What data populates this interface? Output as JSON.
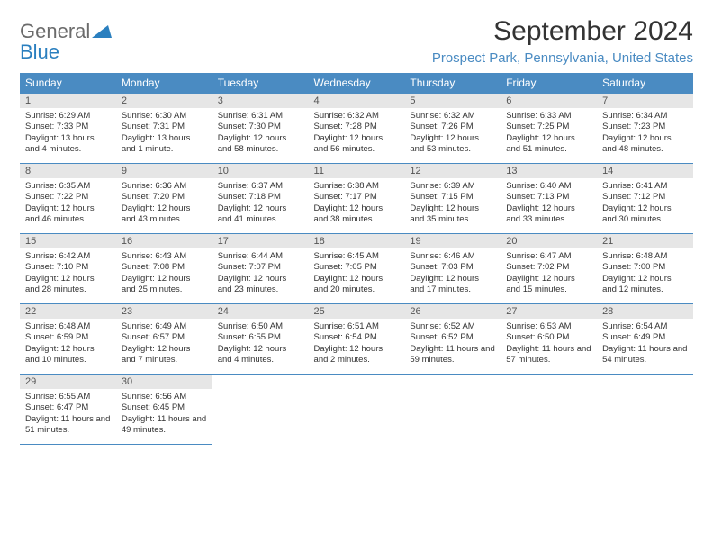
{
  "logo": {
    "word1": "General",
    "word2": "Blue"
  },
  "title": "September 2024",
  "location": "Prospect Park, Pennsylvania, United States",
  "colors": {
    "header_bg": "#4a8bc2",
    "header_text": "#ffffff",
    "daynum_bg": "#e6e6e6",
    "cell_border": "#4a8bc2",
    "logo_gray": "#6b6b6b",
    "logo_blue": "#2a7fbf"
  },
  "weekdays": [
    "Sunday",
    "Monday",
    "Tuesday",
    "Wednesday",
    "Thursday",
    "Friday",
    "Saturday"
  ],
  "weeks": [
    [
      {
        "n": "1",
        "sr": "Sunrise: 6:29 AM",
        "ss": "Sunset: 7:33 PM",
        "dl": "Daylight: 13 hours and 4 minutes."
      },
      {
        "n": "2",
        "sr": "Sunrise: 6:30 AM",
        "ss": "Sunset: 7:31 PM",
        "dl": "Daylight: 13 hours and 1 minute."
      },
      {
        "n": "3",
        "sr": "Sunrise: 6:31 AM",
        "ss": "Sunset: 7:30 PM",
        "dl": "Daylight: 12 hours and 58 minutes."
      },
      {
        "n": "4",
        "sr": "Sunrise: 6:32 AM",
        "ss": "Sunset: 7:28 PM",
        "dl": "Daylight: 12 hours and 56 minutes."
      },
      {
        "n": "5",
        "sr": "Sunrise: 6:32 AM",
        "ss": "Sunset: 7:26 PM",
        "dl": "Daylight: 12 hours and 53 minutes."
      },
      {
        "n": "6",
        "sr": "Sunrise: 6:33 AM",
        "ss": "Sunset: 7:25 PM",
        "dl": "Daylight: 12 hours and 51 minutes."
      },
      {
        "n": "7",
        "sr": "Sunrise: 6:34 AM",
        "ss": "Sunset: 7:23 PM",
        "dl": "Daylight: 12 hours and 48 minutes."
      }
    ],
    [
      {
        "n": "8",
        "sr": "Sunrise: 6:35 AM",
        "ss": "Sunset: 7:22 PM",
        "dl": "Daylight: 12 hours and 46 minutes."
      },
      {
        "n": "9",
        "sr": "Sunrise: 6:36 AM",
        "ss": "Sunset: 7:20 PM",
        "dl": "Daylight: 12 hours and 43 minutes."
      },
      {
        "n": "10",
        "sr": "Sunrise: 6:37 AM",
        "ss": "Sunset: 7:18 PM",
        "dl": "Daylight: 12 hours and 41 minutes."
      },
      {
        "n": "11",
        "sr": "Sunrise: 6:38 AM",
        "ss": "Sunset: 7:17 PM",
        "dl": "Daylight: 12 hours and 38 minutes."
      },
      {
        "n": "12",
        "sr": "Sunrise: 6:39 AM",
        "ss": "Sunset: 7:15 PM",
        "dl": "Daylight: 12 hours and 35 minutes."
      },
      {
        "n": "13",
        "sr": "Sunrise: 6:40 AM",
        "ss": "Sunset: 7:13 PM",
        "dl": "Daylight: 12 hours and 33 minutes."
      },
      {
        "n": "14",
        "sr": "Sunrise: 6:41 AM",
        "ss": "Sunset: 7:12 PM",
        "dl": "Daylight: 12 hours and 30 minutes."
      }
    ],
    [
      {
        "n": "15",
        "sr": "Sunrise: 6:42 AM",
        "ss": "Sunset: 7:10 PM",
        "dl": "Daylight: 12 hours and 28 minutes."
      },
      {
        "n": "16",
        "sr": "Sunrise: 6:43 AM",
        "ss": "Sunset: 7:08 PM",
        "dl": "Daylight: 12 hours and 25 minutes."
      },
      {
        "n": "17",
        "sr": "Sunrise: 6:44 AM",
        "ss": "Sunset: 7:07 PM",
        "dl": "Daylight: 12 hours and 23 minutes."
      },
      {
        "n": "18",
        "sr": "Sunrise: 6:45 AM",
        "ss": "Sunset: 7:05 PM",
        "dl": "Daylight: 12 hours and 20 minutes."
      },
      {
        "n": "19",
        "sr": "Sunrise: 6:46 AM",
        "ss": "Sunset: 7:03 PM",
        "dl": "Daylight: 12 hours and 17 minutes."
      },
      {
        "n": "20",
        "sr": "Sunrise: 6:47 AM",
        "ss": "Sunset: 7:02 PM",
        "dl": "Daylight: 12 hours and 15 minutes."
      },
      {
        "n": "21",
        "sr": "Sunrise: 6:48 AM",
        "ss": "Sunset: 7:00 PM",
        "dl": "Daylight: 12 hours and 12 minutes."
      }
    ],
    [
      {
        "n": "22",
        "sr": "Sunrise: 6:48 AM",
        "ss": "Sunset: 6:59 PM",
        "dl": "Daylight: 12 hours and 10 minutes."
      },
      {
        "n": "23",
        "sr": "Sunrise: 6:49 AM",
        "ss": "Sunset: 6:57 PM",
        "dl": "Daylight: 12 hours and 7 minutes."
      },
      {
        "n": "24",
        "sr": "Sunrise: 6:50 AM",
        "ss": "Sunset: 6:55 PM",
        "dl": "Daylight: 12 hours and 4 minutes."
      },
      {
        "n": "25",
        "sr": "Sunrise: 6:51 AM",
        "ss": "Sunset: 6:54 PM",
        "dl": "Daylight: 12 hours and 2 minutes."
      },
      {
        "n": "26",
        "sr": "Sunrise: 6:52 AM",
        "ss": "Sunset: 6:52 PM",
        "dl": "Daylight: 11 hours and 59 minutes."
      },
      {
        "n": "27",
        "sr": "Sunrise: 6:53 AM",
        "ss": "Sunset: 6:50 PM",
        "dl": "Daylight: 11 hours and 57 minutes."
      },
      {
        "n": "28",
        "sr": "Sunrise: 6:54 AM",
        "ss": "Sunset: 6:49 PM",
        "dl": "Daylight: 11 hours and 54 minutes."
      }
    ],
    [
      {
        "n": "29",
        "sr": "Sunrise: 6:55 AM",
        "ss": "Sunset: 6:47 PM",
        "dl": "Daylight: 11 hours and 51 minutes."
      },
      {
        "n": "30",
        "sr": "Sunrise: 6:56 AM",
        "ss": "Sunset: 6:45 PM",
        "dl": "Daylight: 11 hours and 49 minutes."
      },
      null,
      null,
      null,
      null,
      null
    ]
  ]
}
